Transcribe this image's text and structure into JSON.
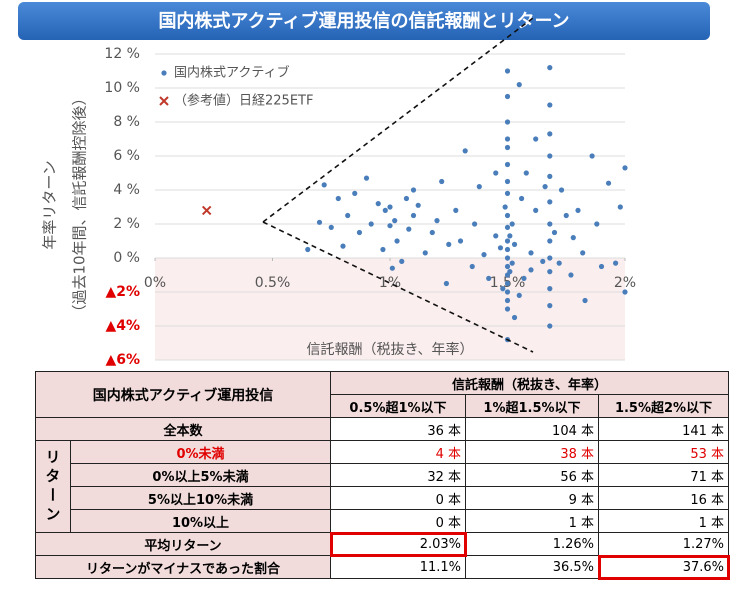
{
  "chart_data": {
    "type": "scatter",
    "title": "国内株式アクティブ運用投信の信託報酬とリターン",
    "ylabel_lines": [
      "年率リターン",
      "（過去10年間、信託報酬控除後）"
    ],
    "xlabel": "信託報酬（税抜き、年率）",
    "xlim": [
      0,
      2
    ],
    "ylim": [
      -6,
      12
    ],
    "xticks": [
      {
        "value": 0,
        "label": "0%"
      },
      {
        "value": 0.5,
        "label": "0.5%"
      },
      {
        "value": 1,
        "label": "1%"
      },
      {
        "value": 1.5,
        "label": "1.5%"
      },
      {
        "value": 2,
        "label": "2%"
      }
    ],
    "yticks": [
      {
        "value": 12,
        "label": "12 %"
      },
      {
        "value": 10,
        "label": "10 %"
      },
      {
        "value": 8,
        "label": "8 %"
      },
      {
        "value": 6,
        "label": "6 %"
      },
      {
        "value": 4,
        "label": "4 %"
      },
      {
        "value": 2,
        "label": "2 %"
      },
      {
        "value": 0,
        "label": "0 %"
      },
      {
        "value": -2,
        "label": "▲2%"
      },
      {
        "value": -4,
        "label": "▲4%"
      },
      {
        "value": -6,
        "label": "▲6%"
      }
    ],
    "grid": true,
    "negative_color": "#e00000",
    "negative_fill": "#fbeeee",
    "series": [
      {
        "name": "国内株式アクティブ",
        "color": "#4a7ebb",
        "marker": "dot",
        "x": [
          0.65,
          0.7,
          0.72,
          0.75,
          0.78,
          0.8,
          0.82,
          0.85,
          0.87,
          0.9,
          0.92,
          0.95,
          0.97,
          0.98,
          1.0,
          1.0,
          1.01,
          1.02,
          1.03,
          1.05,
          1.07,
          1.08,
          1.1,
          1.1,
          1.12,
          1.15,
          1.18,
          1.2,
          1.22,
          1.24,
          1.25,
          1.28,
          1.3,
          1.32,
          1.35,
          1.36,
          1.38,
          1.4,
          1.42,
          1.45,
          1.45,
          1.47,
          1.48,
          1.49,
          1.5,
          1.5,
          1.5,
          1.5,
          1.5,
          1.5,
          1.5,
          1.5,
          1.5,
          1.5,
          1.5,
          1.5,
          1.5,
          1.5,
          1.5,
          1.5,
          1.5,
          1.5,
          1.5,
          1.5,
          1.51,
          1.51,
          1.52,
          1.52,
          1.53,
          1.53,
          1.55,
          1.55,
          1.56,
          1.57,
          1.58,
          1.6,
          1.6,
          1.62,
          1.62,
          1.65,
          1.66,
          1.68,
          1.68,
          1.68,
          1.68,
          1.68,
          1.68,
          1.68,
          1.68,
          1.68,
          1.68,
          1.68,
          1.68,
          1.68,
          1.7,
          1.72,
          1.73,
          1.75,
          1.77,
          1.78,
          1.8,
          1.82,
          1.83,
          1.86,
          1.88,
          1.9,
          1.93,
          1.96,
          1.98,
          2.0,
          2.0
        ],
        "values": [
          0.5,
          2.1,
          4.3,
          1.8,
          3.5,
          0.7,
          2.5,
          3.8,
          1.5,
          4.7,
          2.0,
          3.2,
          0.5,
          2.8,
          1.9,
          3.0,
          -0.6,
          2.2,
          1.0,
          -0.2,
          3.5,
          1.7,
          4.0,
          2.5,
          3.1,
          0.3,
          1.5,
          2.2,
          4.5,
          -1.5,
          0.8,
          2.8,
          1.0,
          6.3,
          -0.5,
          2.0,
          4.2,
          0.2,
          -1.2,
          5.0,
          1.3,
          0.6,
          -1.8,
          3.0,
          11.0,
          9.5,
          8.0,
          7.0,
          6.5,
          5.5,
          4.5,
          3.8,
          2.5,
          1.8,
          1.0,
          0.5,
          0.0,
          -0.5,
          -1.0,
          -1.5,
          -2.0,
          -2.5,
          -3.0,
          -4.8,
          -0.8,
          1.3,
          -0.3,
          2.0,
          -3.5,
          0.8,
          -2.2,
          10.2,
          3.5,
          -1.2,
          5.0,
          0.3,
          -0.7,
          7.0,
          2.8,
          -0.2,
          4.2,
          11.2,
          9.0,
          7.3,
          6.0,
          4.8,
          3.3,
          2.0,
          1.0,
          0.0,
          -0.8,
          -1.8,
          -2.8,
          -4.0,
          1.5,
          -0.3,
          4.0,
          2.5,
          -1.0,
          1.2,
          2.8,
          0.3,
          -2.5,
          6.0,
          2.0,
          -0.5,
          4.4,
          -0.3,
          3.0,
          5.3,
          -2.0
        ]
      },
      {
        "name": "（参考値）日経225ETF",
        "color": "#c0392b",
        "marker": "x",
        "x": [
          0.22
        ],
        "values": [
          2.8
        ]
      }
    ]
  },
  "table": {
    "corner": "国内株式アクティブ運用投信",
    "group_header": "信託報酬（税抜き、年率）",
    "columns": [
      "0.5%超1%以下",
      "1%超1.5%以下",
      "1.5%超2%以下"
    ],
    "side_label": "リターン",
    "rows": [
      {
        "label": "全本数",
        "cells": [
          "36 本",
          "104 本",
          "141 本"
        ]
      },
      {
        "label": "0%未満",
        "cells": [
          "4 本",
          "38 本",
          "53 本"
        ]
      },
      {
        "label": "0%以上5%未満",
        "cells": [
          "32 本",
          "56 本",
          "71 本"
        ]
      },
      {
        "label": "5%以上10%未満",
        "cells": [
          "0 本",
          "9 本",
          "16 本"
        ]
      },
      {
        "label": "10%以上",
        "cells": [
          "0 本",
          "1 本",
          "1 本"
        ]
      },
      {
        "label": "平均リターン",
        "cells": [
          "2.03%",
          "1.26%",
          "1.27%"
        ]
      },
      {
        "label": "リターンがマイナスであった割合",
        "cells": [
          "11.1%",
          "36.5%",
          "37.6%"
        ]
      }
    ]
  }
}
